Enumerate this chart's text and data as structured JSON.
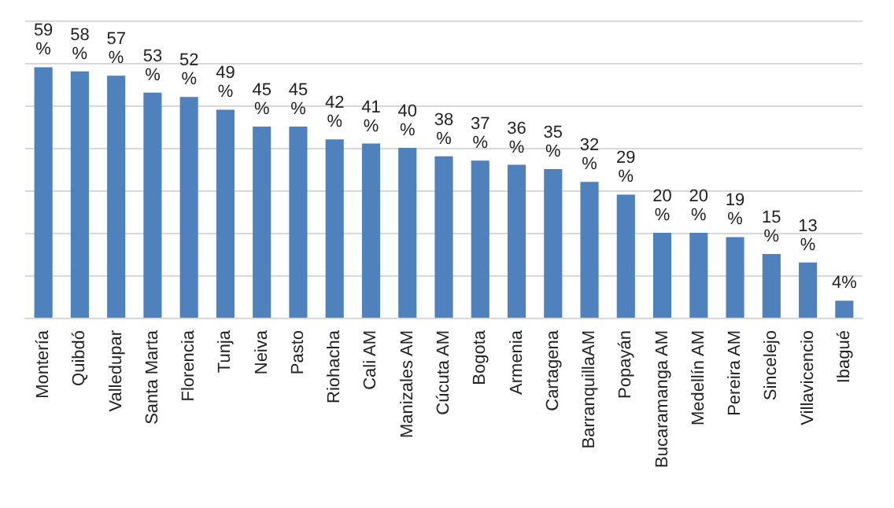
{
  "chart_data": {
    "type": "bar",
    "categories": [
      "Montería",
      "Quibdó",
      "Valledupar",
      "Santa Marta",
      "Florencia",
      "Tunja",
      "Neiva",
      "Pasto",
      "Riohacha",
      "Cali AM",
      "Manizales AM",
      "Cúcuta AM",
      "Bogota",
      "Armenia",
      "Cartagena",
      "BarranquillaAM",
      "Popayán",
      "Bucaramanga AM",
      "Medellín AM",
      "Pereira AM",
      "Sincelejo",
      "Villavicencio",
      "Ibagué"
    ],
    "values": [
      59,
      58,
      57,
      53,
      52,
      49,
      45,
      45,
      42,
      41,
      40,
      38,
      37,
      36,
      35,
      32,
      29,
      20,
      20,
      19,
      15,
      13,
      4
    ],
    "value_labels": [
      "59%",
      "58%",
      "57%",
      "53%",
      "52%",
      "49%",
      "45%",
      "45%",
      "42%",
      "41%",
      "40%",
      "38%",
      "37%",
      "36%",
      "35%",
      "32%",
      "29%",
      "20%",
      "20%",
      "19%",
      "15%",
      "13%",
      "4%"
    ],
    "color": "#4f81bd",
    "ylim": [
      0,
      70
    ],
    "yticks": [
      {
        "value": 0,
        "label": null
      },
      {
        "value": 10,
        "label": null
      },
      {
        "value": 20,
        "label": null
      },
      {
        "value": 30,
        "label": null
      },
      {
        "value": 40,
        "label": null
      },
      {
        "value": 50,
        "label": null
      },
      {
        "value": 60,
        "label": null
      },
      {
        "value": 70,
        "label": null
      }
    ],
    "grid": "y",
    "tick_labels": "x"
  }
}
